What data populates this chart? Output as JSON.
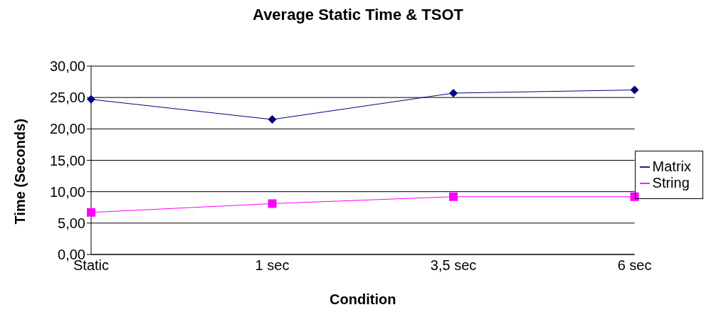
{
  "chart_data": {
    "type": "line",
    "title": "Average Static Time & TSOT",
    "xlabel": "Condition",
    "ylabel": "Time (Seconds)",
    "categories": [
      "Static",
      "1 sec",
      "3,5 sec",
      "6 sec"
    ],
    "series": [
      {
        "name": "Matrix",
        "color": "#000080",
        "marker": "diamond",
        "values": [
          24.7,
          21.5,
          25.7,
          26.2
        ]
      },
      {
        "name": "String",
        "color": "#ff00ff",
        "marker": "square",
        "values": [
          6.7,
          8.1,
          9.2,
          9.2
        ]
      }
    ],
    "ylim": [
      0,
      30
    ],
    "yticks": [
      {
        "value": 0,
        "label": "0,00"
      },
      {
        "value": 5,
        "label": "5,00"
      },
      {
        "value": 10,
        "label": "10,00"
      },
      {
        "value": 15,
        "label": "15,00"
      },
      {
        "value": 20,
        "label": "20,00"
      },
      {
        "value": 25,
        "label": "25,00"
      },
      {
        "value": 30,
        "label": "30,00"
      }
    ],
    "grid": "y",
    "legend": "right",
    "line_style": "solid"
  }
}
